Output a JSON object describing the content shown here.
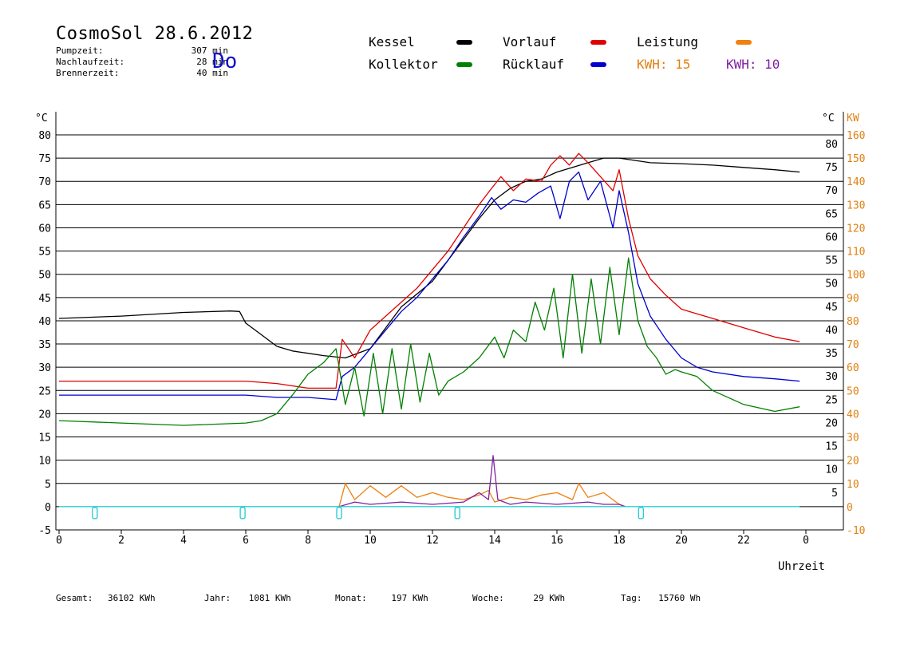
{
  "header": {
    "title": "CosmoSol 28.6.2012",
    "day": "Do",
    "stats": [
      {
        "label": "Pumpzeit:",
        "value": "307 min"
      },
      {
        "label": "Nachlaufzeit:",
        "value": "28 min"
      },
      {
        "label": "Brennerzeit:",
        "value": "40 min"
      }
    ]
  },
  "legend": {
    "kessel": {
      "label": "Kessel",
      "color": "#000000"
    },
    "vorlauf": {
      "label": "Vorlauf",
      "color": "#e00000"
    },
    "leistung": {
      "label": "Leistung",
      "color": "#f08010"
    },
    "kollektor": {
      "label": "Kollektor",
      "color": "#008000"
    },
    "ruecklauf": {
      "label": "Rücklauf",
      "color": "#0000d0"
    },
    "kwh1": {
      "label": "KWH:",
      "value": "15",
      "color": "#e08010"
    },
    "kwh2": {
      "label": "KWH:",
      "value": "10",
      "color": "#8020a0"
    }
  },
  "footer": [
    {
      "label": "Gesamt:",
      "value": "36102 KWh"
    },
    {
      "label": "Jahr:",
      "value": "1081 KWh"
    },
    {
      "label": "Monat:",
      "value": "197 KWh"
    },
    {
      "label": "Woche:",
      "value": "29 KWh"
    },
    {
      "label": "Tag:",
      "value": "15760 Wh"
    }
  ],
  "chart_data": {
    "type": "line",
    "xlabel": "Uhrzeit",
    "ylabel_left": "°C",
    "ylabel_right": "°C",
    "ylabel_right2": "KW",
    "xlim": [
      0,
      24
    ],
    "ylim": [
      -5,
      80
    ],
    "ylim_right2": [
      -10,
      160
    ],
    "x_ticks": [
      "0",
      "2",
      "4",
      "6",
      "8",
      "10",
      "12",
      "14",
      "16",
      "18",
      "20",
      "22",
      "0"
    ],
    "y_ticks_left": [
      "80",
      "75",
      "70",
      "65",
      "60",
      "55",
      "50",
      "45",
      "40",
      "35",
      "30",
      "25",
      "20",
      "15",
      "10",
      "5",
      "0",
      "-5"
    ],
    "y_ticks_right": [
      "80",
      "75",
      "70",
      "65",
      "60",
      "55",
      "50",
      "45",
      "40",
      "35",
      "30",
      "25",
      "20",
      "15",
      "10",
      "5"
    ],
    "y_ticks_right2": [
      "160",
      "150",
      "140",
      "130",
      "120",
      "110",
      "100",
      "90",
      "80",
      "70",
      "60",
      "50",
      "40",
      "30",
      "20",
      "10",
      "0",
      "-10"
    ],
    "grid": true,
    "series": [
      {
        "name": "Kessel",
        "color": "#000000",
        "x": [
          0,
          2,
          4,
          5.5,
          5.8,
          6.0,
          6.5,
          7.0,
          7.5,
          8.5,
          9.2,
          10,
          11,
          12,
          12.5,
          13,
          13.5,
          14,
          14.5,
          15,
          15.5,
          16,
          16.5,
          17,
          17.5,
          18,
          18.5,
          19,
          20,
          21,
          22,
          23,
          23.8
        ],
        "y": [
          40.5,
          41.0,
          41.8,
          42.1,
          42.0,
          39.5,
          37.0,
          34.5,
          33.5,
          32.5,
          32.0,
          34.0,
          43.0,
          48.5,
          53.0,
          57.5,
          62.0,
          66.0,
          68.5,
          70.0,
          70.5,
          72.0,
          73.0,
          74.0,
          75.0,
          75.0,
          74.5,
          74.0,
          73.8,
          73.5,
          73.0,
          72.5,
          72.0
        ]
      },
      {
        "name": "Vorlauf",
        "color": "#e00000",
        "x": [
          0,
          2,
          4,
          6,
          7,
          8,
          8.9,
          9.1,
          9.5,
          10,
          10.5,
          11,
          11.5,
          12,
          12.5,
          13,
          13.5,
          13.9,
          14.2,
          14.6,
          15,
          15.5,
          15.8,
          16.1,
          16.4,
          16.7,
          17.0,
          17.4,
          17.8,
          18.0,
          18.3,
          18.6,
          19,
          19.5,
          20,
          20.5,
          21,
          22,
          23,
          23.8
        ],
        "y": [
          27.0,
          27.0,
          27.0,
          27.0,
          26.5,
          25.5,
          25.5,
          36.0,
          32.0,
          38.0,
          41.0,
          44.0,
          47.0,
          51.0,
          55.0,
          60.0,
          65.0,
          68.5,
          71.0,
          68.0,
          70.5,
          70.0,
          73.5,
          75.5,
          73.5,
          76.0,
          74.0,
          71.0,
          68.0,
          72.5,
          62.0,
          54.0,
          49.0,
          45.5,
          42.5,
          41.5,
          40.5,
          38.5,
          36.5,
          35.5
        ]
      },
      {
        "name": "Rücklauf",
        "color": "#0000d0",
        "x": [
          0,
          2,
          4,
          6,
          7,
          8,
          8.9,
          9.1,
          9.5,
          10,
          10.5,
          11,
          11.5,
          12,
          12.5,
          13,
          13.5,
          13.9,
          14.2,
          14.6,
          15,
          15.4,
          15.8,
          16.1,
          16.4,
          16.7,
          17.0,
          17.4,
          17.8,
          18.0,
          18.3,
          18.6,
          19,
          19.5,
          20,
          20.5,
          21,
          22,
          23,
          23.8
        ],
        "y": [
          24.0,
          24.0,
          24.0,
          24.0,
          23.5,
          23.5,
          23.0,
          28.0,
          30.0,
          34.0,
          38.0,
          42.0,
          45.0,
          49.0,
          53.0,
          58.0,
          62.5,
          66.5,
          64.0,
          66.0,
          65.5,
          67.5,
          69.0,
          62.0,
          70.0,
          72.0,
          66.0,
          70.0,
          60.0,
          68.0,
          59.0,
          48.0,
          41.0,
          36.0,
          32.0,
          30.0,
          29.0,
          28.0,
          27.5,
          27.0
        ]
      },
      {
        "name": "Kollektor",
        "color": "#008000",
        "x": [
          0,
          2,
          4,
          6,
          6.5,
          7,
          7.5,
          8,
          8.5,
          8.9,
          9.2,
          9.5,
          9.8,
          10.1,
          10.4,
          10.7,
          11.0,
          11.3,
          11.6,
          11.9,
          12.2,
          12.5,
          13.0,
          13.5,
          14.0,
          14.3,
          14.6,
          15.0,
          15.3,
          15.6,
          15.9,
          16.2,
          16.5,
          16.8,
          17.1,
          17.4,
          17.7,
          18.0,
          18.3,
          18.6,
          18.9,
          19.2,
          19.5,
          19.8,
          20.0,
          20.5,
          21,
          22,
          23,
          23.8
        ],
        "y": [
          18.5,
          18.0,
          17.5,
          18.0,
          18.5,
          20.0,
          24.0,
          28.5,
          31.0,
          34.0,
          22.0,
          30.0,
          19.5,
          33.0,
          20.0,
          34.0,
          21.0,
          35.0,
          22.5,
          33.0,
          24.0,
          27.0,
          29.0,
          32.0,
          36.5,
          32.0,
          38.0,
          35.5,
          44.0,
          38.0,
          47.0,
          32.0,
          50.0,
          33.0,
          49.0,
          35.0,
          51.5,
          37.0,
          53.5,
          40.0,
          34.5,
          32.0,
          28.5,
          29.5,
          29.0,
          28.0,
          25.0,
          22.0,
          20.5,
          21.5
        ]
      },
      {
        "name": "Leistung",
        "color": "#f08010",
        "x": [
          9.0,
          9.2,
          9.5,
          10,
          10.5,
          11,
          11.5,
          12,
          12.5,
          13,
          13.5,
          13.8,
          14.0,
          14.5,
          15,
          15.5,
          16,
          16.5,
          16.7,
          17,
          17.5,
          18,
          18.2
        ],
        "y": [
          0,
          5.0,
          1.5,
          4.5,
          2.0,
          4.5,
          2.0,
          3.0,
          2.0,
          1.5,
          2.5,
          3.5,
          1.0,
          2.0,
          1.5,
          2.5,
          3.0,
          1.5,
          5.0,
          2.0,
          3.0,
          0.5,
          0
        ]
      },
      {
        "name": "KWH",
        "color": "#8020a0",
        "x": [
          9.0,
          9.5,
          10,
          11,
          12,
          13,
          13.5,
          13.8,
          13.95,
          14.1,
          14.5,
          15,
          16,
          17,
          17.5,
          18,
          18.2
        ],
        "y": [
          0,
          1.0,
          0.5,
          1.0,
          0.5,
          1.0,
          3.0,
          1.5,
          11.0,
          1.5,
          0.5,
          1.0,
          0.5,
          1.0,
          0.5,
          0.5,
          0
        ]
      },
      {
        "name": "Pumpe",
        "color": "#20d8d8",
        "x": [
          0,
          23.8
        ],
        "y": [
          0,
          0
        ]
      }
    ],
    "pump_markers": [
      1.15,
      5.9,
      9.0,
      12.8,
      18.7
    ]
  }
}
